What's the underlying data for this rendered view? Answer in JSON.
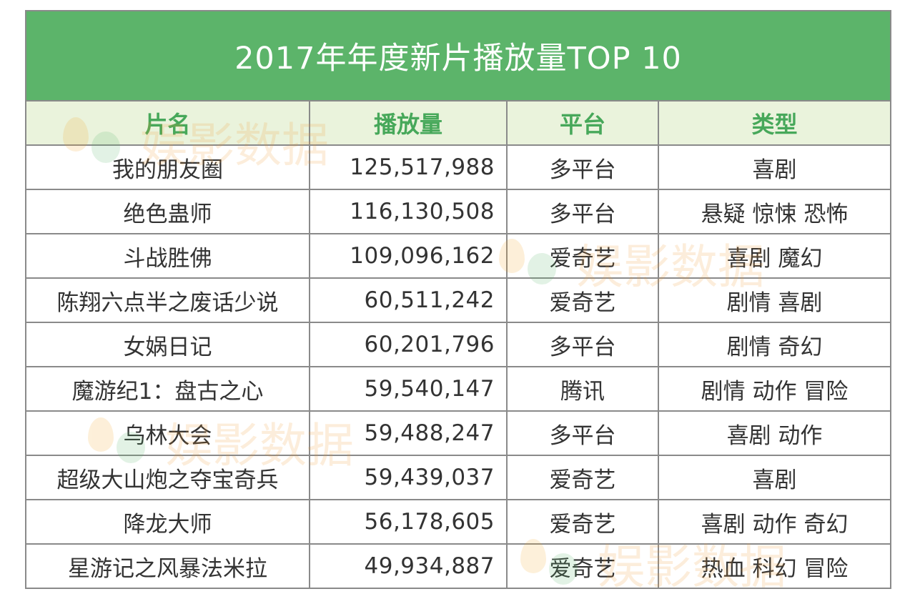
{
  "table": {
    "title": "2017年年度新片播放量TOP 10",
    "headers": [
      "片名",
      "播放量",
      "平台",
      "类型"
    ],
    "rows": [
      {
        "name": "我的朋友圈",
        "plays": "125,517,988",
        "platform": "多平台",
        "genre": "喜剧"
      },
      {
        "name": "绝色蛊师",
        "plays": "116,130,508",
        "platform": "多平台",
        "genre": "悬疑 惊悚 恐怖"
      },
      {
        "name": "斗战胜佛",
        "plays": "109,096,162",
        "platform": "爱奇艺",
        "genre": "喜剧 魔幻"
      },
      {
        "name": "陈翔六点半之废话少说",
        "plays": "60,511,242",
        "platform": "爱奇艺",
        "genre": "剧情 喜剧"
      },
      {
        "name": "女娲日记",
        "plays": "60,201,796",
        "platform": "多平台",
        "genre": "剧情 奇幻"
      },
      {
        "name": "魔游纪1：盘古之心",
        "plays": "59,540,147",
        "platform": "腾讯",
        "genre": "剧情 动作 冒险"
      },
      {
        "name": "乌林大会",
        "plays": "59,488,247",
        "platform": "多平台",
        "genre": "喜剧 动作"
      },
      {
        "name": "超级大山炮之夺宝奇兵",
        "plays": "59,439,037",
        "platform": "爱奇艺",
        "genre": "喜剧"
      },
      {
        "name": "降龙大师",
        "plays": "56,178,605",
        "platform": "爱奇艺",
        "genre": "喜剧 动作 奇幻"
      },
      {
        "name": "星游记之风暴法米拉",
        "plays": "49,934,887",
        "platform": "爱奇艺",
        "genre": "热血 科幻 冒险"
      }
    ]
  },
  "watermark": {
    "text": "娱影数据",
    "colors": {
      "orange": "#f39a2e",
      "green": "#57b86b"
    }
  },
  "colors": {
    "title_bg": "#5cb46a",
    "header_bg": "#eaf3dc",
    "header_text": "#47a85a",
    "border": "#8a8a8a",
    "cell_text": "#333333"
  }
}
